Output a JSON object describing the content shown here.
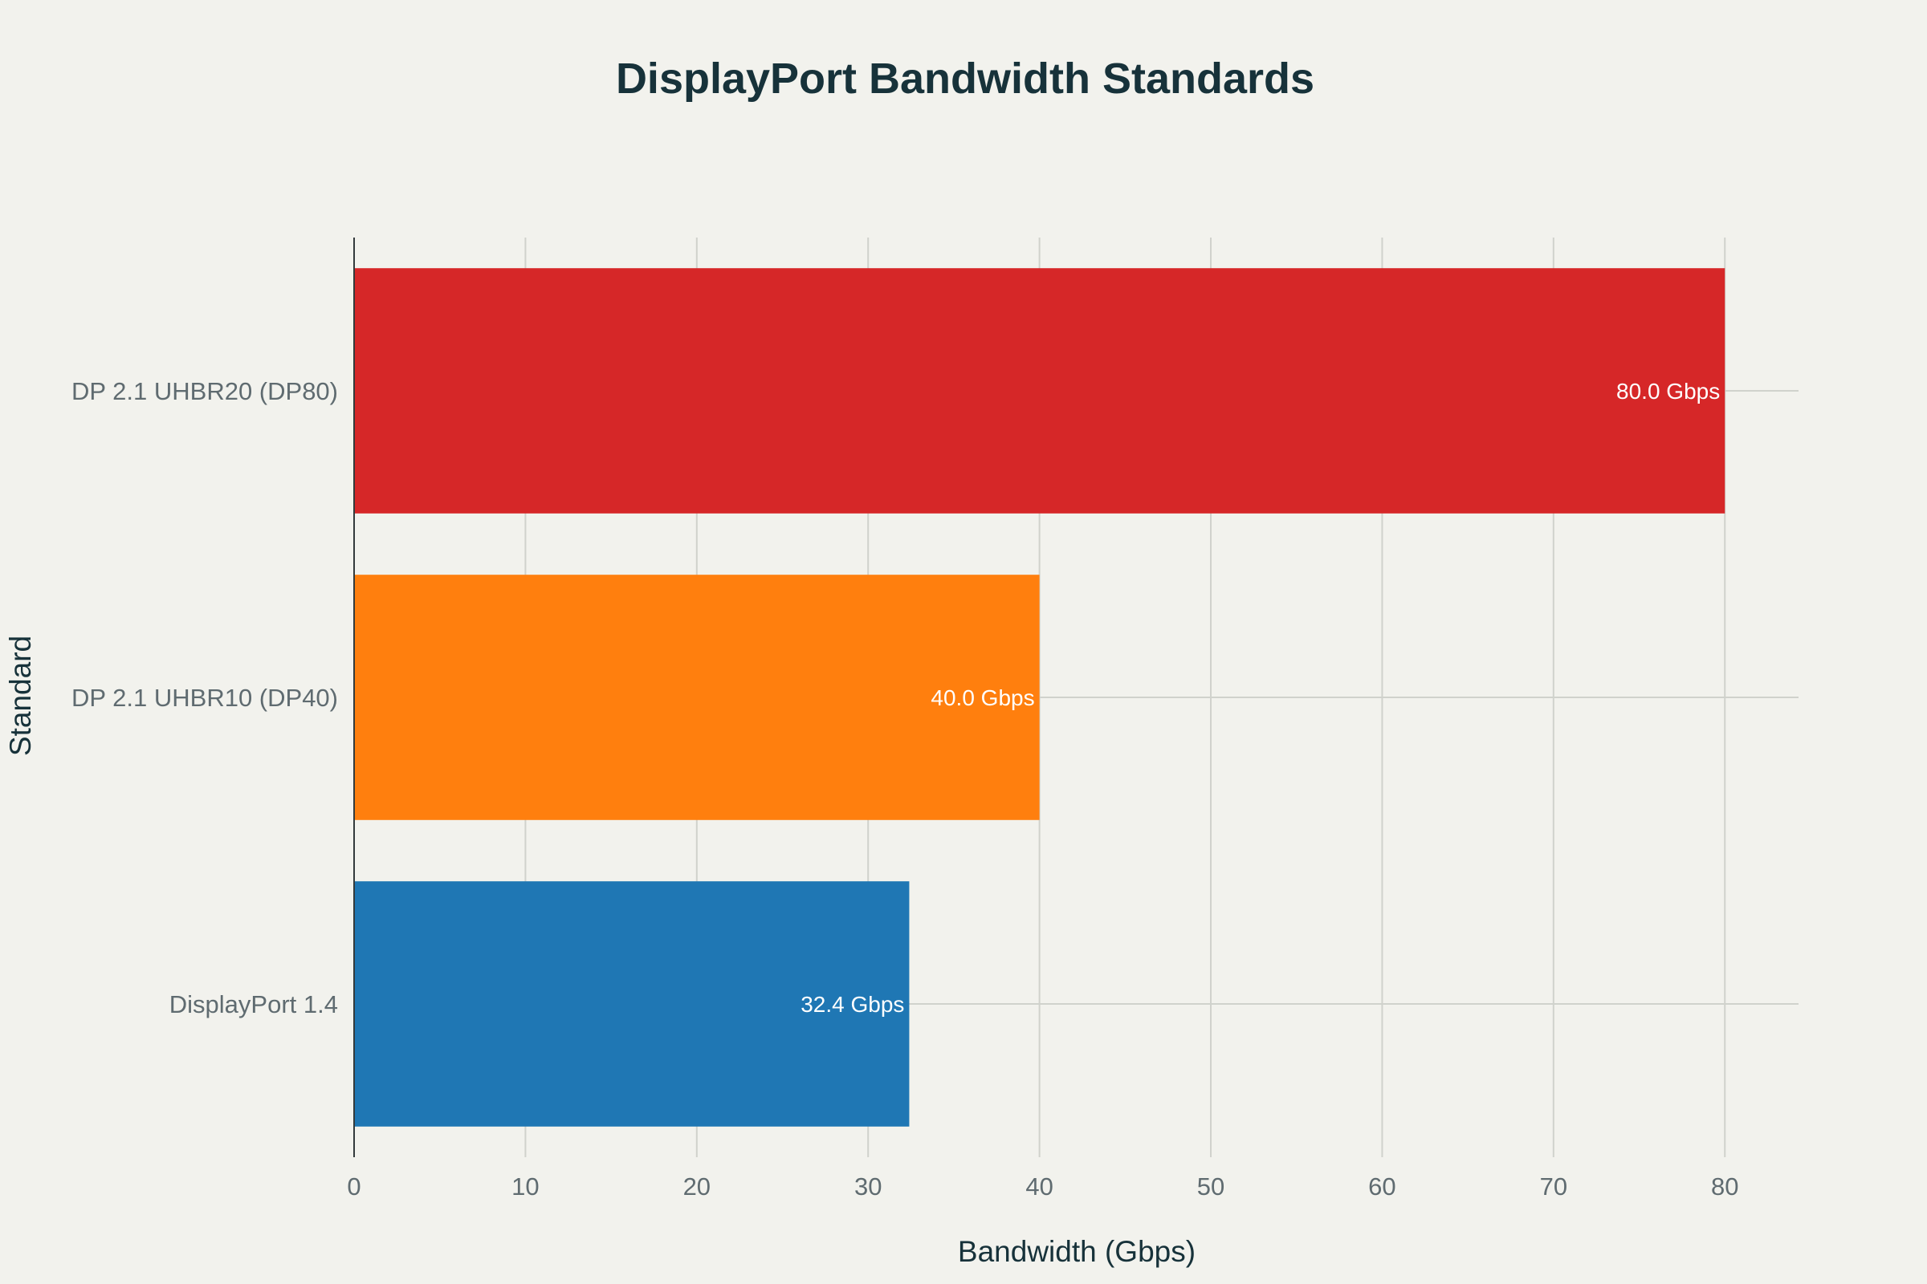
{
  "chart_data": {
    "type": "bar",
    "orientation": "horizontal",
    "title": "DisplayPort Bandwidth Standards",
    "xlabel": "Bandwidth (Gbps)",
    "ylabel": "Standard",
    "categories": [
      "DP 2.1 UHBR20 (DP80)",
      "DP 2.1 UHBR10 (DP40)",
      "DisplayPort 1.4"
    ],
    "values": [
      80.0,
      40.0,
      32.4
    ],
    "data_labels": [
      "80.0 Gbps",
      "40.0 Gbps",
      "32.4 Gbps"
    ],
    "colors": [
      "#d62728",
      "#ff7f0e",
      "#1f77b4"
    ],
    "xlim": [
      0,
      84.3
    ],
    "xticks": [
      0,
      10,
      20,
      30,
      40,
      50,
      60,
      70,
      80
    ],
    "grid": true,
    "legend": "none"
  }
}
